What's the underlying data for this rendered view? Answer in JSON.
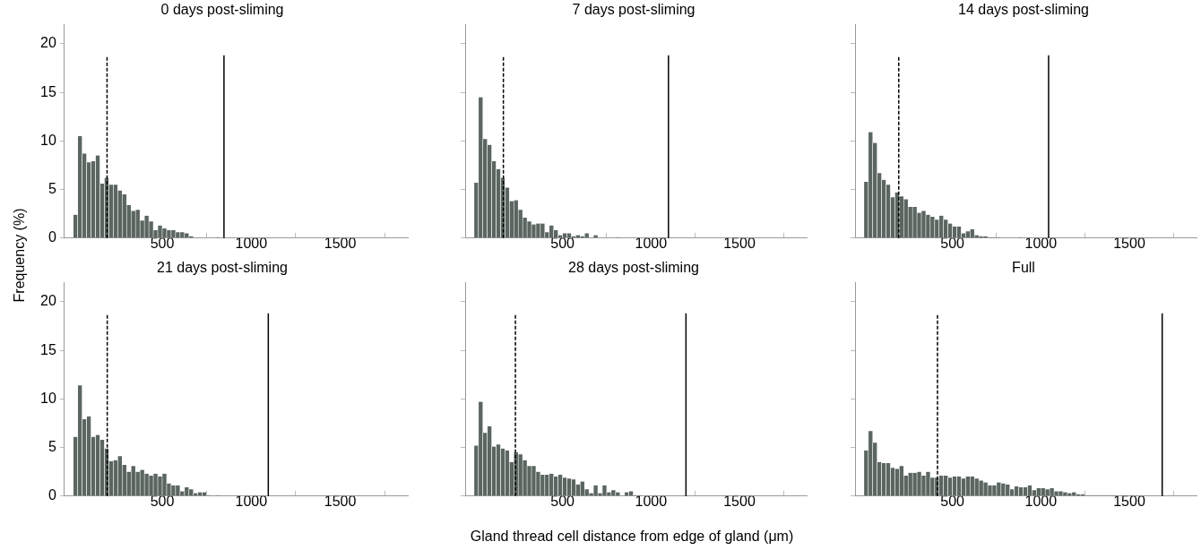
{
  "chart_data": [
    {
      "type": "histogram",
      "title": "0 days post-sliming",
      "ylabel": "Frequency (%)",
      "xlim": [
        -50,
        1880
      ],
      "xticks": [
        500,
        1000,
        1500
      ],
      "ylim": [
        0,
        22
      ],
      "yticks": [
        0,
        5,
        10,
        15,
        20
      ],
      "color": "#5b6660",
      "bins": [
        0,
        25,
        50,
        75,
        100,
        125,
        150,
        175,
        200,
        225,
        250,
        275,
        300,
        325,
        350,
        375,
        400,
        425,
        450,
        475,
        500,
        525,
        550,
        575,
        600,
        625,
        650,
        675,
        700,
        725,
        750,
        775,
        800,
        825
      ],
      "values": [
        2.4,
        10.5,
        8.7,
        7.8,
        7.9,
        8.5,
        5.6,
        6.2,
        5.5,
        5.5,
        4.9,
        4.5,
        3.4,
        2.8,
        2.9,
        1.8,
        2.3,
        1.7,
        0.8,
        1.3,
        1.0,
        0.8,
        0.8,
        0.6,
        0.6,
        0.5,
        0.2,
        0,
        0,
        0,
        0,
        0,
        0.1
      ],
      "ref_lines": [
        {
          "axis": "x",
          "value": 190,
          "line_style": "dashed"
        },
        {
          "axis": "x",
          "value": 847,
          "line_style": "solid"
        }
      ]
    },
    {
      "type": "histogram",
      "title": "7 days post-sliming",
      "xlim": [
        -50,
        1880
      ],
      "xticks": [
        500,
        1000,
        1500
      ],
      "ylim": [
        0,
        22
      ],
      "yticks": [
        0,
        5,
        10,
        15,
        20
      ],
      "tick_labels": "x",
      "color": "#5b6660",
      "bins": [
        0,
        25,
        50,
        75,
        100,
        125,
        150,
        175,
        200,
        225,
        250,
        275,
        300,
        325,
        350,
        375,
        400,
        425,
        450,
        475,
        500,
        525,
        550,
        575,
        600,
        625,
        650,
        675,
        700,
        725,
        750,
        775,
        800,
        825
      ],
      "values": [
        5.7,
        14.5,
        10.2,
        9.6,
        7.9,
        7.1,
        6.2,
        5.2,
        3.8,
        3.9,
        2.9,
        2.1,
        1.7,
        1.4,
        1.5,
        1.5,
        0.6,
        1.3,
        0.8,
        0.3,
        0.5,
        0.5,
        0.2,
        0.3,
        0.2,
        0.5,
        0,
        0.3,
        0,
        0,
        0,
        0,
        0.1
      ],
      "ref_lines": [
        {
          "axis": "x",
          "value": 166,
          "line_style": "dashed"
        },
        {
          "axis": "x",
          "value": 1099,
          "line_style": "solid"
        }
      ]
    },
    {
      "type": "histogram",
      "title": "14 days post-sliming",
      "xlim": [
        -50,
        1880
      ],
      "xticks": [
        500,
        1000,
        1500
      ],
      "ylim": [
        0,
        22
      ],
      "yticks": [
        0,
        5,
        10,
        15,
        20
      ],
      "tick_labels": "x",
      "color": "#5b6660",
      "bins": [
        0,
        25,
        50,
        75,
        100,
        125,
        150,
        175,
        200,
        225,
        250,
        275,
        300,
        325,
        350,
        375,
        400,
        425,
        450,
        475,
        500,
        525,
        550,
        575,
        600,
        625,
        650,
        675,
        700,
        725,
        750,
        775,
        800,
        825,
        850,
        875,
        900
      ],
      "values": [
        5.8,
        10.9,
        9.8,
        6.7,
        6.0,
        5.5,
        4.2,
        4.7,
        4.3,
        4.0,
        3.2,
        3.2,
        2.6,
        2.8,
        2.4,
        2.2,
        1.9,
        2.3,
        1.9,
        1.5,
        1.2,
        1.2,
        0.5,
        0.7,
        0.9,
        0.3,
        0.2,
        0.2,
        0.1,
        0.1,
        0.1,
        0,
        0,
        0,
        0,
        0.1
      ],
      "ref_lines": [
        {
          "axis": "x",
          "value": 197,
          "line_style": "dashed"
        },
        {
          "axis": "x",
          "value": 1044,
          "line_style": "solid"
        }
      ]
    },
    {
      "type": "histogram",
      "title": "21 days post-sliming",
      "xlim": [
        -50,
        1880
      ],
      "xticks": [
        500,
        1000,
        1500
      ],
      "ylim": [
        0,
        22
      ],
      "yticks": [
        0,
        5,
        10,
        15,
        20
      ],
      "color": "#5b6660",
      "bins": [
        0,
        25,
        50,
        75,
        100,
        125,
        150,
        175,
        200,
        225,
        250,
        275,
        300,
        325,
        350,
        375,
        400,
        425,
        450,
        475,
        500,
        525,
        550,
        575,
        600,
        625,
        650,
        675,
        700,
        725,
        750,
        775,
        800,
        825
      ],
      "values": [
        6.1,
        11.4,
        7.9,
        8.2,
        6.1,
        6.3,
        5.8,
        4.9,
        3.6,
        3.7,
        4.1,
        3.2,
        2.5,
        3.1,
        2.5,
        2.7,
        2.3,
        2.1,
        2.3,
        2.0,
        2.3,
        1.3,
        1.1,
        1.1,
        0.5,
        0.9,
        0.7,
        0.3,
        0.4,
        0.4,
        0.1,
        0,
        0.1
      ],
      "ref_lines": [
        {
          "axis": "x",
          "value": 191,
          "line_style": "dashed"
        },
        {
          "axis": "x",
          "value": 1096,
          "line_style": "solid"
        }
      ]
    },
    {
      "type": "histogram",
      "title": "28 days post-sliming",
      "xlabel": "Gland thread cell distance from edge of gland (μm)",
      "xlim": [
        -50,
        1880
      ],
      "xticks": [
        500,
        1000,
        1500
      ],
      "ylim": [
        0,
        22
      ],
      "yticks": [
        0,
        5,
        10,
        15,
        20
      ],
      "tick_labels": "x",
      "color": "#5b6660",
      "bins": [
        0,
        25,
        50,
        75,
        100,
        125,
        150,
        175,
        200,
        225,
        250,
        275,
        300,
        325,
        350,
        375,
        400,
        425,
        450,
        475,
        500,
        525,
        550,
        575,
        600,
        625,
        650,
        675,
        700,
        725,
        750,
        775,
        800,
        825,
        850,
        875,
        900,
        925,
        950
      ],
      "values": [
        5.2,
        9.7,
        6.5,
        7.2,
        5.1,
        5.3,
        4.9,
        4.7,
        3.5,
        4.5,
        4.3,
        3.7,
        3.1,
        3.1,
        2.5,
        2.2,
        2.2,
        2.3,
        2.0,
        2.2,
        1.9,
        1.8,
        1.7,
        1.2,
        1.5,
        0.7,
        0.3,
        1.1,
        0.3,
        1.1,
        0.4,
        0.6,
        0.4,
        0,
        0.4,
        0.5,
        0.1,
        0.1
      ],
      "ref_lines": [
        {
          "axis": "x",
          "value": 234,
          "line_style": "dashed"
        },
        {
          "axis": "x",
          "value": 1198,
          "line_style": "solid"
        }
      ]
    },
    {
      "type": "histogram",
      "title": "Full",
      "xlim": [
        -50,
        1880
      ],
      "xticks": [
        500,
        1000,
        1500
      ],
      "ylim": [
        0,
        22
      ],
      "yticks": [
        0,
        5,
        10,
        15,
        20
      ],
      "tick_labels": "x",
      "color": "#5b6660",
      "bins": [
        0,
        25,
        50,
        75,
        100,
        125,
        150,
        175,
        200,
        225,
        250,
        275,
        300,
        325,
        350,
        375,
        400,
        425,
        450,
        475,
        500,
        525,
        550,
        575,
        600,
        625,
        650,
        675,
        700,
        725,
        750,
        775,
        800,
        825,
        850,
        875,
        900,
        925,
        950,
        975,
        1000,
        1025,
        1050,
        1075,
        1100,
        1125,
        1150,
        1175,
        1200,
        1225,
        1250,
        1275,
        1300,
        1325,
        1350,
        1375,
        1400,
        1425,
        1450,
        1475,
        1500,
        1525
      ],
      "values": [
        4.7,
        6.7,
        5.5,
        3.5,
        3.4,
        3.4,
        2.9,
        2.8,
        3.1,
        2.1,
        2.4,
        2.4,
        2.5,
        2.1,
        2.5,
        1.9,
        1.9,
        2.1,
        2.1,
        1.9,
        2.0,
        2.0,
        1.8,
        2.0,
        2.0,
        1.8,
        1.6,
        1.4,
        1.1,
        1.1,
        1.4,
        1.3,
        1.2,
        0.7,
        1.0,
        0.9,
        0.9,
        1.1,
        0.6,
        0.8,
        0.8,
        0.7,
        0.8,
        0.5,
        0.5,
        0.4,
        0.3,
        0.4,
        0.2,
        0.2,
        0.1,
        0.1,
        0.1,
        0.1,
        0.1,
        0.1,
        0.1,
        0,
        0.1,
        0,
        0.1
      ],
      "ref_lines": [
        {
          "axis": "x",
          "value": 416,
          "line_style": "dashed"
        },
        {
          "axis": "x",
          "value": 1686,
          "line_style": "solid"
        }
      ]
    }
  ]
}
